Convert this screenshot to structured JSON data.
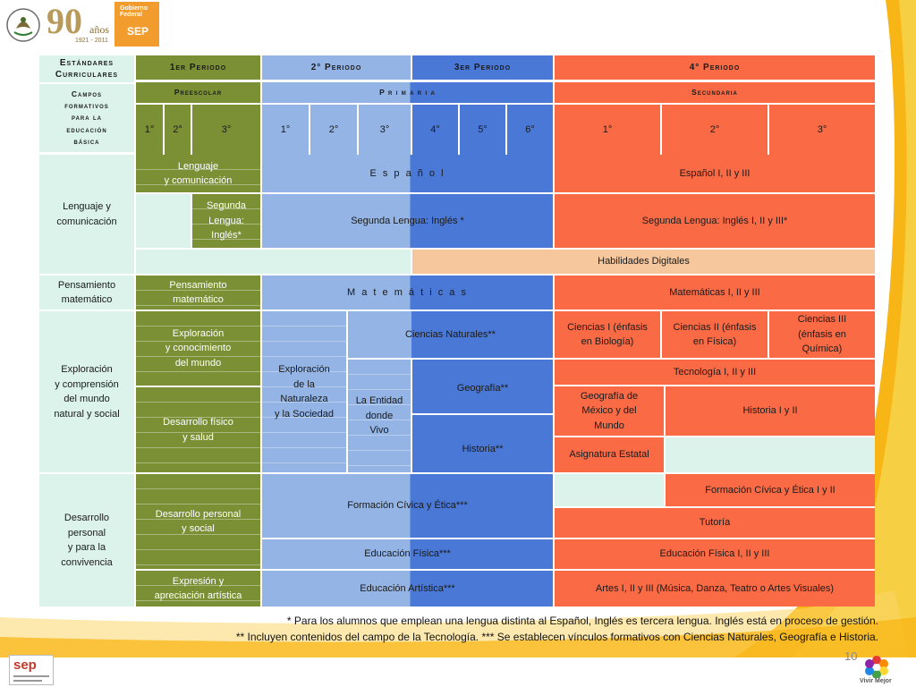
{
  "header": {
    "anniversary_number": "90",
    "anniversary_word": "años",
    "anniversary_years": "1921 - 2011",
    "gov_line1": "Gobierno",
    "gov_line2": "Federal",
    "agency": "SEP"
  },
  "table": {
    "estandares": "Estándares\nCurriculares",
    "periodos": [
      "1er Periodo",
      "2° Periodo",
      "3er Periodo",
      "4° Periodo"
    ],
    "campos_label": "Campos\nformativos\npara la\neducación\nbásica",
    "niveles": [
      "Preescolar",
      "P r i m a r i a",
      "Secundaria"
    ],
    "grados": [
      "1°",
      "2°",
      "3°",
      "1°",
      "2°",
      "3°",
      "4°",
      "5°",
      "6°",
      "1°",
      "2°",
      "3°"
    ],
    "campos": [
      "Lenguaje y\ncomunicación",
      "Pensamiento\nmatemático",
      "Exploración\ny comprensión\ndel mundo\nnatural y social",
      "Desarrollo\npersonal\ny para la\nconvivencia"
    ],
    "preescolar": {
      "lenguaje": "Lenguaje\ny comunicación",
      "segunda_lengua": "Segunda\nLengua:\nInglés*",
      "pensamiento": "Pensamiento\nmatemático",
      "exploracion": "Exploración\ny conocimiento\ndel mundo",
      "desarrollo_fisico": "Desarrollo físico\ny salud",
      "desarrollo_personal": "Desarrollo personal\ny social",
      "expresion": "Expresión y\napreciación artística"
    },
    "primaria": {
      "espanol": "E s p a ñ o l",
      "segunda_lengua": "Segunda Lengua:   Inglés *",
      "habilidades": "Habilidades Digitales",
      "matematicas": "M a t e m á t i c a s",
      "exploracion_naturaleza": "Exploración\nde la\nNaturaleza\ny la Sociedad",
      "ciencias_naturales": "Ciencias  Naturales**",
      "entidad": "La Entidad\ndonde\nVivo",
      "geografia": "Geografía**",
      "historia": "Historia**",
      "formacion": "Formación Cívica y Ética***",
      "educacion_fisica": "Educación  Física***",
      "educacion_artistica": "Educación  Artística***"
    },
    "secundaria": {
      "espanol": "Español I, II y III",
      "segunda_lengua": "Segunda Lengua: Inglés I, II y III*",
      "matematicas": "Matemáticas  I, II y III",
      "ciencias_1": "Ciencias I (énfasis\nen Biología)",
      "ciencias_2": "Ciencias II (énfasis\nen Física)",
      "ciencias_3": "Ciencias III\n(énfasis en\nQuímica)",
      "tecnologia": "Tecnología  I, II y III",
      "geografia": "Geografía de\nMéxico y del\nMundo",
      "historia": "Historia I y II",
      "asignatura": "Asignatura Estatal",
      "formacion": "Formación Cívica  y Ética I y II",
      "tutoria": "Tutoría",
      "educacion_fisica": "Educación Física I, II y III",
      "artes": "Artes I, II y III (Música, Danza, Teatro o Artes Visuales)"
    }
  },
  "footnotes": [
    "* Para los alumnos que emplean una lengua distinta al Español, Inglés es tercera lengua. Inglés está en proceso de gestión.",
    "** Incluyen contenidos del campo de la Tecnología. *** Se establecen vínculos formativos con Ciencias Naturales, Geografía e Historia."
  ],
  "page_number": "10",
  "footer_logo_text": "sep",
  "footer_brand": "Vivir Mejor",
  "colors": {
    "preescolar": "#7b8f35",
    "primaria_light": "#93b4e4",
    "primaria_dark": "#4a78d6",
    "secundaria": "#fa6a45",
    "habilidades": "#f6c79c",
    "label_bg": "#dcf3ec",
    "swoosh": "#f8b616"
  }
}
